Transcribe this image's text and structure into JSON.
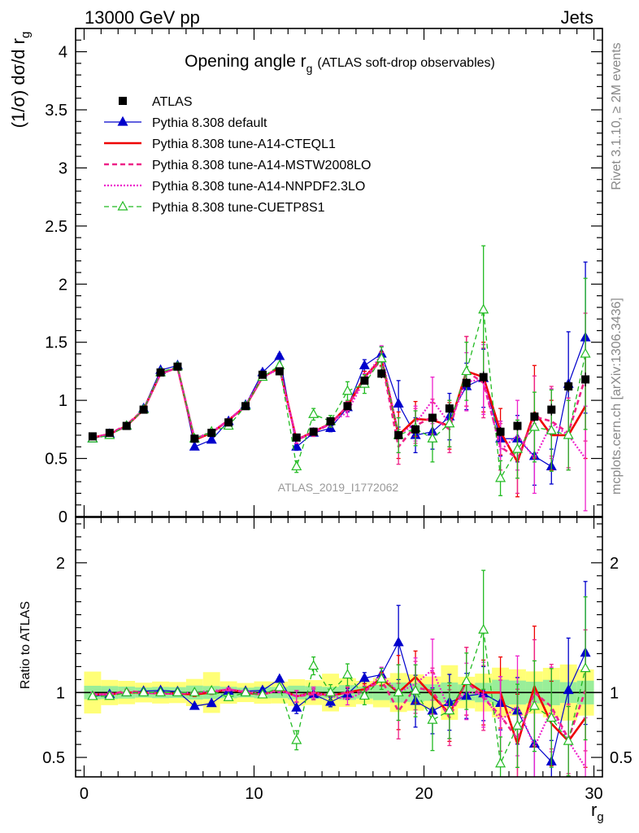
{
  "header": {
    "left": "13000 GeV pp",
    "right": "Jets"
  },
  "side_labels": {
    "rivet": "Rivet 3.1.10, ≥ 2M events",
    "mcplots": "mcplots.cern.ch [arXiv:1306.3436]"
  },
  "chart_data": {
    "type": "line",
    "title": "Opening angle r",
    "title_sub": "g",
    "title_suffix": "(ATLAS soft-drop observables)",
    "watermark": "ATLAS_2019_I1772062",
    "ylabel": "(1/σ) dσ/d r",
    "ylabel_sub": "g",
    "xlabel": "r",
    "xlabel_sub": "g",
    "ratio_ylabel": "Ratio to ATLAS",
    "xlim": [
      -0.5,
      30.5
    ],
    "ylim": [
      0,
      4.2
    ],
    "ratio_ylim": [
      0.35,
      2.35
    ],
    "x_ticks": [
      "0",
      "10",
      "20",
      "30"
    ],
    "y_ticks": [
      "0",
      "0.5",
      "1",
      "1.5",
      "2",
      "2.5",
      "3",
      "3.5",
      "4"
    ],
    "ratio_ticks": [
      "0.5",
      "1",
      "2"
    ],
    "x": [
      0.5,
      1.5,
      2.5,
      3.5,
      4.5,
      5.5,
      6.5,
      7.5,
      8.5,
      9.5,
      10.5,
      11.5,
      12.5,
      13.5,
      14.5,
      15.5,
      16.5,
      17.5,
      18.5,
      19.5,
      20.5,
      21.5,
      22.5,
      23.5,
      24.5,
      25.5,
      26.5,
      27.5,
      28.5,
      29.5
    ],
    "data": {
      "name": "ATLAS",
      "values": [
        0.69,
        0.72,
        0.78,
        0.92,
        1.24,
        1.29,
        0.67,
        0.72,
        0.81,
        0.95,
        1.22,
        1.25,
        0.68,
        0.73,
        0.82,
        0.95,
        1.17,
        1.23,
        0.7,
        0.75,
        0.85,
        0.93,
        1.15,
        1.2,
        0.73,
        0.78,
        0.86,
        0.92,
        1.12,
        1.18
      ],
      "errors": [
        0.02,
        0.02,
        0.02,
        0.02,
        0.03,
        0.03,
        0.02,
        0.02,
        0.02,
        0.02,
        0.03,
        0.03,
        0.02,
        0.02,
        0.02,
        0.03,
        0.03,
        0.04,
        0.03,
        0.03,
        0.03,
        0.04,
        0.04,
        0.05,
        0.04,
        0.04,
        0.04,
        0.05,
        0.05,
        0.06
      ]
    },
    "series": [
      {
        "name": "Pythia 8.308 default",
        "color": "#0000cc",
        "style": "solid",
        "marker": "triangle-filled",
        "values": [
          0.67,
          0.71,
          0.78,
          0.93,
          1.26,
          1.3,
          0.6,
          0.66,
          0.82,
          0.96,
          1.24,
          1.38,
          0.6,
          0.72,
          0.76,
          0.94,
          1.3,
          1.4,
          0.97,
          0.7,
          0.73,
          0.86,
          1.12,
          1.19,
          0.67,
          0.67,
          0.52,
          0.43,
          1.14,
          1.54
        ],
        "errors": [
          0.01,
          0.01,
          0.01,
          0.01,
          0.01,
          0.01,
          0.01,
          0.01,
          0.01,
          0.01,
          0.02,
          0.02,
          0.03,
          0.03,
          0.03,
          0.04,
          0.05,
          0.06,
          0.2,
          0.15,
          0.15,
          0.2,
          0.2,
          0.25,
          0.15,
          0.2,
          0.25,
          0.15,
          0.45,
          0.65
        ]
      },
      {
        "name": "Pythia 8.308 tune-A14-CTEQL1",
        "color": "#ee0000",
        "style": "solid-thick",
        "marker": "none",
        "values": [
          0.68,
          0.71,
          0.78,
          0.92,
          1.23,
          1.28,
          0.66,
          0.72,
          0.83,
          0.95,
          1.2,
          1.28,
          0.66,
          0.73,
          0.8,
          0.95,
          1.2,
          1.36,
          0.7,
          0.84,
          0.83,
          0.78,
          1.25,
          1.2,
          0.73,
          0.47,
          0.9,
          0.7,
          0.7,
          0.95
        ],
        "errors": [
          0.01,
          0.01,
          0.01,
          0.01,
          0.01,
          0.01,
          0.01,
          0.01,
          0.01,
          0.01,
          0.02,
          0.02,
          0.03,
          0.03,
          0.03,
          0.04,
          0.05,
          0.06,
          0.2,
          0.15,
          0.15,
          0.2,
          0.3,
          0.3,
          0.2,
          0.3,
          0.4,
          0.3,
          0.3,
          0.45
        ]
      },
      {
        "name": "Pythia 8.308 tune-A14-MSTW2008LO",
        "color": "#ee2288",
        "style": "dashed-thick",
        "marker": "none",
        "values": [
          0.68,
          0.71,
          0.79,
          0.92,
          1.23,
          1.28,
          0.67,
          0.72,
          0.83,
          0.95,
          1.2,
          1.28,
          0.66,
          0.72,
          0.8,
          0.95,
          1.18,
          1.35,
          0.6,
          0.78,
          0.86,
          0.75,
          1.25,
          1.15,
          0.6,
          0.5,
          0.86,
          0.82,
          0.72,
          1.2
        ],
        "errors": [
          0.01,
          0.01,
          0.01,
          0.01,
          0.01,
          0.01,
          0.01,
          0.01,
          0.01,
          0.01,
          0.02,
          0.02,
          0.03,
          0.03,
          0.03,
          0.04,
          0.05,
          0.06,
          0.15,
          0.15,
          0.15,
          0.2,
          0.3,
          0.3,
          0.2,
          0.3,
          0.35,
          0.3,
          0.3,
          0.55
        ]
      },
      {
        "name": "Pythia 8.308 tune-A14-NNPDF2.3LO",
        "color": "#ee22cc",
        "style": "dotted",
        "marker": "none",
        "values": [
          0.68,
          0.71,
          0.78,
          0.92,
          1.23,
          1.28,
          0.67,
          0.73,
          0.83,
          0.96,
          1.2,
          1.27,
          0.66,
          0.73,
          0.8,
          0.9,
          1.18,
          1.4,
          0.7,
          0.8,
          1.0,
          0.8,
          1.16,
          1.18,
          0.57,
          0.7,
          0.5,
          0.8,
          0.7,
          0.5
        ],
        "errors": [
          0.01,
          0.01,
          0.01,
          0.01,
          0.01,
          0.01,
          0.01,
          0.01,
          0.01,
          0.01,
          0.02,
          0.02,
          0.03,
          0.03,
          0.03,
          0.04,
          0.05,
          0.07,
          0.15,
          0.15,
          0.2,
          0.2,
          0.25,
          0.3,
          0.25,
          0.3,
          0.3,
          0.3,
          0.3,
          0.45
        ]
      },
      {
        "name": "Pythia 8.308 tune-CUETP8S1",
        "color": "#22bb22",
        "style": "dashed",
        "marker": "triangle-open",
        "values": [
          0.67,
          0.7,
          0.78,
          0.92,
          1.24,
          1.29,
          0.67,
          0.73,
          0.78,
          0.95,
          1.2,
          1.3,
          0.43,
          0.88,
          0.82,
          1.08,
          1.14,
          1.36,
          0.7,
          0.76,
          0.67,
          0.8,
          1.25,
          1.78,
          0.33,
          0.58,
          0.77,
          0.74,
          0.7,
          1.4
        ],
        "errors": [
          0.01,
          0.01,
          0.01,
          0.01,
          0.01,
          0.01,
          0.01,
          0.01,
          0.01,
          0.01,
          0.02,
          0.02,
          0.05,
          0.05,
          0.05,
          0.08,
          0.08,
          0.1,
          0.15,
          0.15,
          0.2,
          0.2,
          0.25,
          0.55,
          0.15,
          0.25,
          0.3,
          0.35,
          0.3,
          0.65
        ]
      }
    ]
  }
}
